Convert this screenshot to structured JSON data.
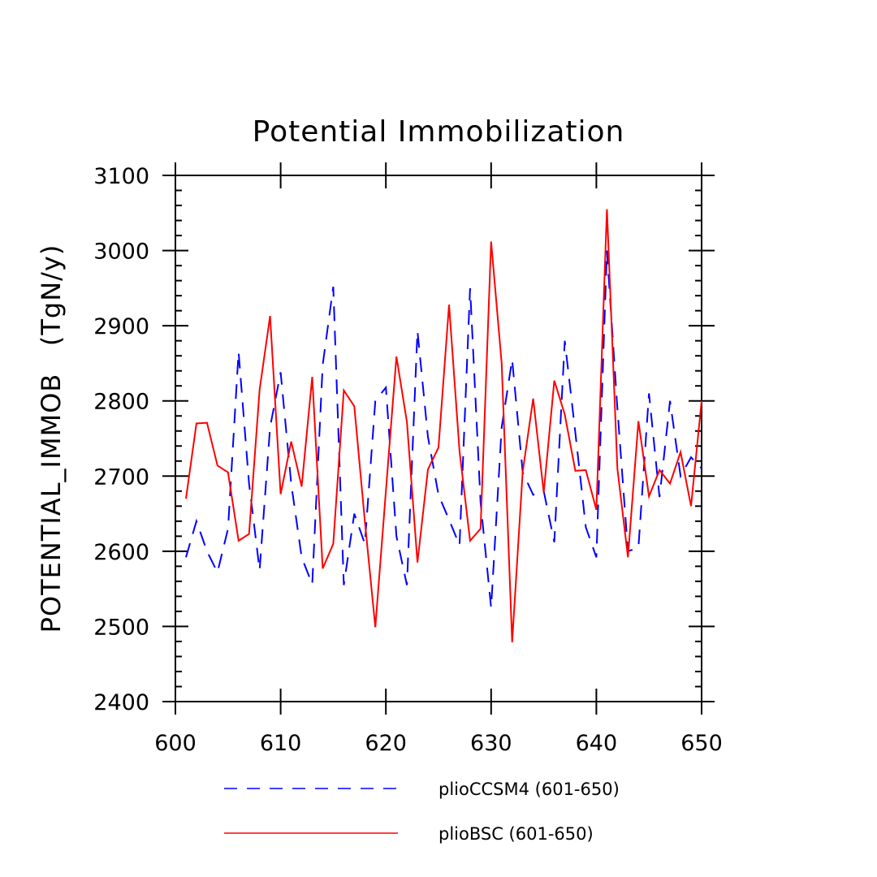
{
  "chart_data": {
    "type": "line",
    "title": "Potential Immobilization",
    "ylabel": "POTENTIAL_IMMOB   (TgN/y)",
    "xlabel": "",
    "xlim": [
      600,
      650
    ],
    "ylim": [
      2400,
      3100
    ],
    "x_ticks": [
      600,
      610,
      620,
      630,
      640,
      650
    ],
    "y_ticks": [
      2400,
      2500,
      2600,
      2700,
      2800,
      2900,
      3000,
      3100
    ],
    "x_tick_labels": [
      "600",
      "610",
      "620",
      "630",
      "640",
      "650"
    ],
    "y_tick_labels": [
      "2400",
      "2500",
      "2600",
      "2700",
      "2800",
      "2900",
      "3000",
      "3100"
    ],
    "grid": false,
    "legend_position": "bottom",
    "x": [
      601,
      602,
      603,
      604,
      605,
      606,
      607,
      608,
      609,
      610,
      611,
      612,
      613,
      614,
      615,
      616,
      617,
      618,
      619,
      620,
      621,
      622,
      623,
      624,
      625,
      626,
      627,
      628,
      629,
      630,
      631,
      632,
      633,
      634,
      635,
      636,
      637,
      638,
      639,
      640,
      641,
      642,
      643,
      644,
      645,
      646,
      647,
      648,
      649,
      650
    ],
    "series": [
      {
        "name": "plioCCSM4 (601-650)",
        "color": "#0000ff",
        "dash": "dashed",
        "values": [
          2592,
          2640,
          2600,
          2572,
          2630,
          2865,
          2690,
          2575,
          2765,
          2838,
          2690,
          2592,
          2556,
          2848,
          2952,
          2555,
          2650,
          2610,
          2800,
          2818,
          2620,
          2555,
          2893,
          2752,
          2675,
          2642,
          2608,
          2950,
          2665,
          2525,
          2765,
          2855,
          2705,
          2675,
          2680,
          2612,
          2880,
          2758,
          2632,
          2592,
          3000,
          2790,
          2600,
          2605,
          2810,
          2672,
          2800,
          2700,
          2725,
          2710
        ]
      },
      {
        "name": "plioBSC (601-650)",
        "color": "#ff0000",
        "dash": "solid",
        "values": [
          2670,
          2770,
          2771,
          2714,
          2705,
          2614,
          2623,
          2815,
          2913,
          2676,
          2746,
          2686,
          2832,
          2577,
          2610,
          2814,
          2793,
          2640,
          2499,
          2680,
          2859,
          2772,
          2585,
          2709,
          2738,
          2928,
          2733,
          2614,
          2630,
          3012,
          2850,
          2479,
          2706,
          2803,
          2678,
          2827,
          2782,
          2707,
          2708,
          2655,
          3055,
          2710,
          2592,
          2773,
          2673,
          2708,
          2690,
          2732,
          2660,
          2800
        ]
      }
    ]
  }
}
